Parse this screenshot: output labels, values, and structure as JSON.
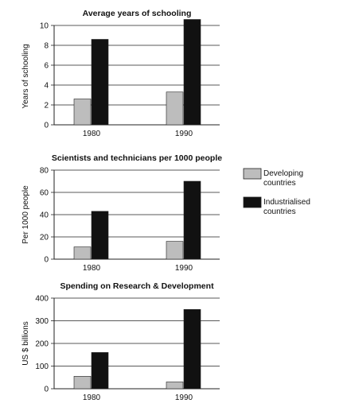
{
  "colors": {
    "developing": "#bdbdbd",
    "industrialised": "#111111",
    "axis": "#222222",
    "grid": "#222222"
  },
  "legend": {
    "developing": "Developing countries",
    "industrialised": "Industrialised countries"
  },
  "chart_data": [
    {
      "type": "bar",
      "title": "Average years of schooling",
      "xlabel": "",
      "ylabel": "Years of schooling",
      "categories": [
        "1980",
        "1990"
      ],
      "ylim": [
        0,
        10
      ],
      "yticks": [
        0,
        2,
        4,
        6,
        8,
        10
      ],
      "grid": true,
      "series": [
        {
          "name": "Developing countries",
          "values": [
            2.6,
            3.3
          ]
        },
        {
          "name": "Industrialised countries",
          "values": [
            8.6,
            10.6
          ]
        }
      ]
    },
    {
      "type": "bar",
      "title": "Scientists and technicians per 1000 people",
      "xlabel": "",
      "ylabel": "Per 1000 people",
      "categories": [
        "1980",
        "1990"
      ],
      "ylim": [
        0,
        80
      ],
      "yticks": [
        0,
        20,
        40,
        60,
        80
      ],
      "grid": true,
      "series": [
        {
          "name": "Developing countries",
          "values": [
            11,
            16
          ]
        },
        {
          "name": "Industrialised countries",
          "values": [
            43,
            70
          ]
        }
      ]
    },
    {
      "type": "bar",
      "title": "Spending on Research & Development",
      "xlabel": "",
      "ylabel": "US $ billions",
      "categories": [
        "1980",
        "1990"
      ],
      "ylim": [
        0,
        400
      ],
      "yticks": [
        0,
        100,
        200,
        300,
        400
      ],
      "grid": true,
      "series": [
        {
          "name": "Developing countries",
          "values": [
            55,
            30
          ]
        },
        {
          "name": "Industrialised countries",
          "values": [
            160,
            350
          ]
        }
      ]
    }
  ]
}
